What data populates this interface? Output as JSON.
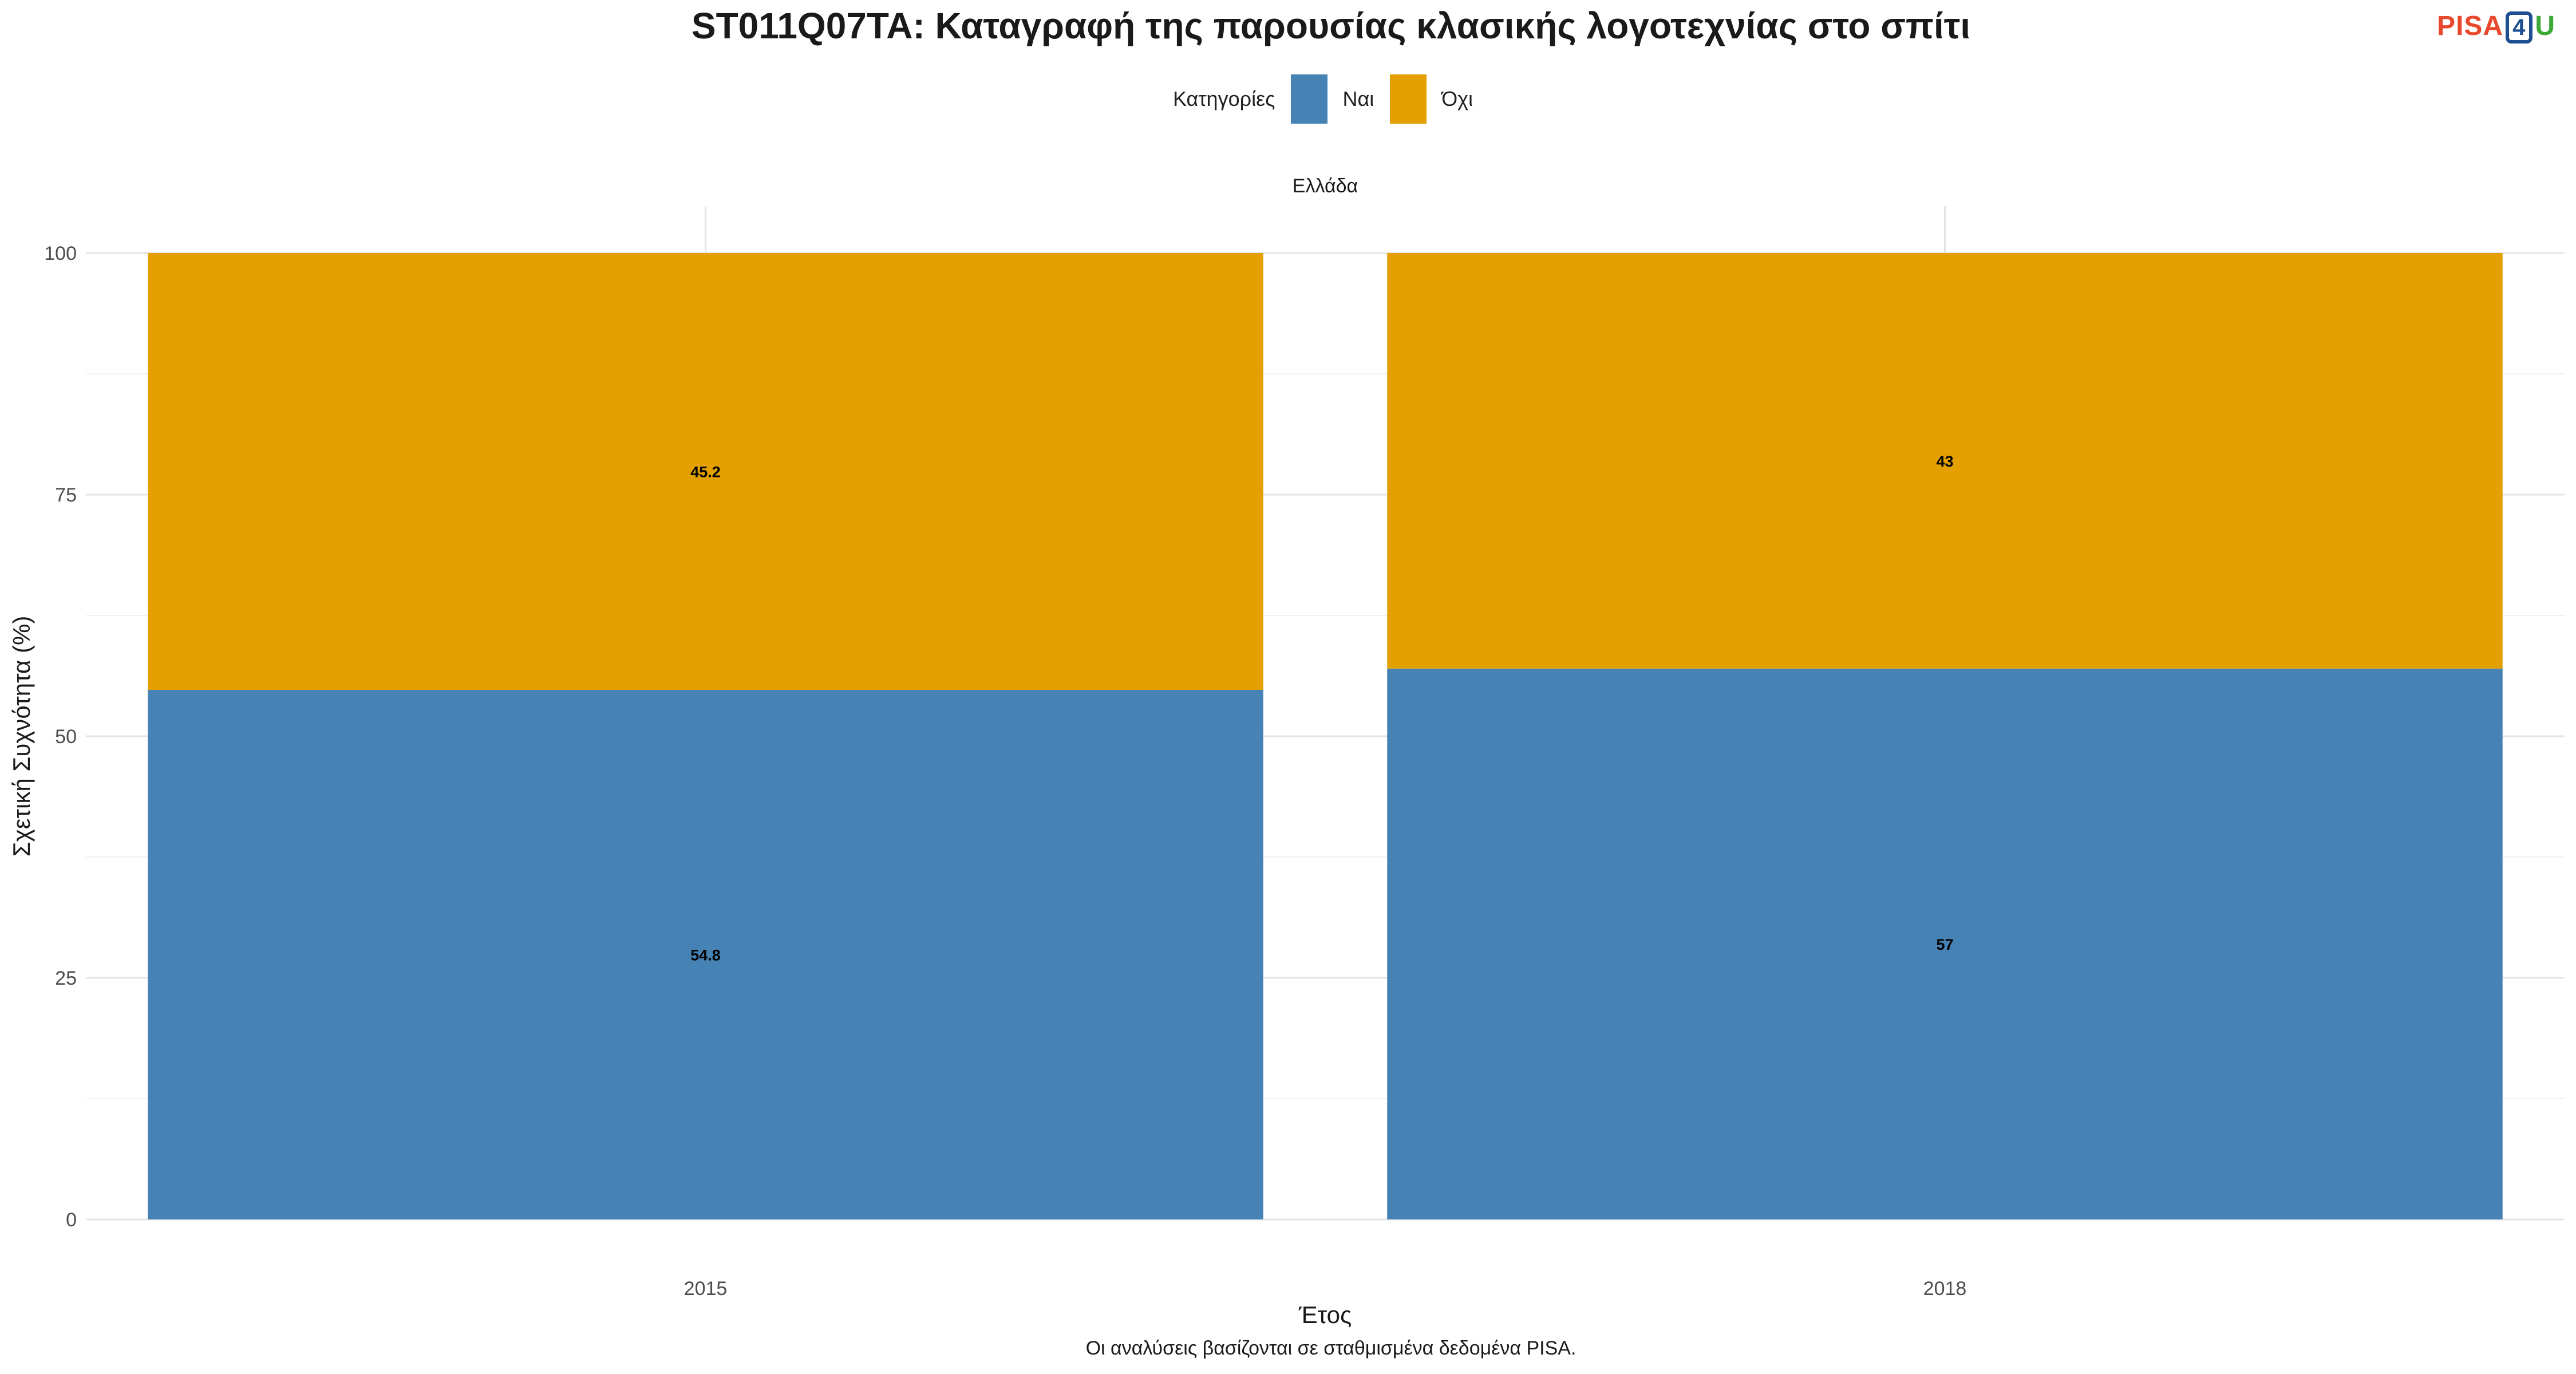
{
  "chart_data": {
    "type": "bar",
    "stacked": true,
    "title": "ST011Q07TA: Καταγραφή της παρουσίας κλασικής λογοτεχνίας στο σπίτι",
    "facet": "Ελλάδα",
    "categories": [
      "2015",
      "2018"
    ],
    "series": [
      {
        "name": "Ναι",
        "values": [
          54.8,
          57
        ],
        "labels": [
          "54.8",
          "57"
        ],
        "color": "#4682b4"
      },
      {
        "name": "Όχι",
        "values": [
          45.2,
          43
        ],
        "labels": [
          "45.2",
          "43"
        ],
        "color": "#e3a000"
      }
    ],
    "legend_title": "Κατηγορίες",
    "legend_position": "top",
    "xlabel": "Έτος",
    "ylabel": "Σχετική Συχνότητα (%)",
    "ylim": [
      0,
      100
    ],
    "yticks": [
      "0",
      "25",
      "50",
      "75",
      "100"
    ],
    "grid": true,
    "caption": "Οι αναλύσεις βασίζονται σε σταθμισμένα δεδομένα PISA."
  },
  "logo": {
    "part1": "PISA",
    "part2": "4",
    "part3": "U"
  }
}
